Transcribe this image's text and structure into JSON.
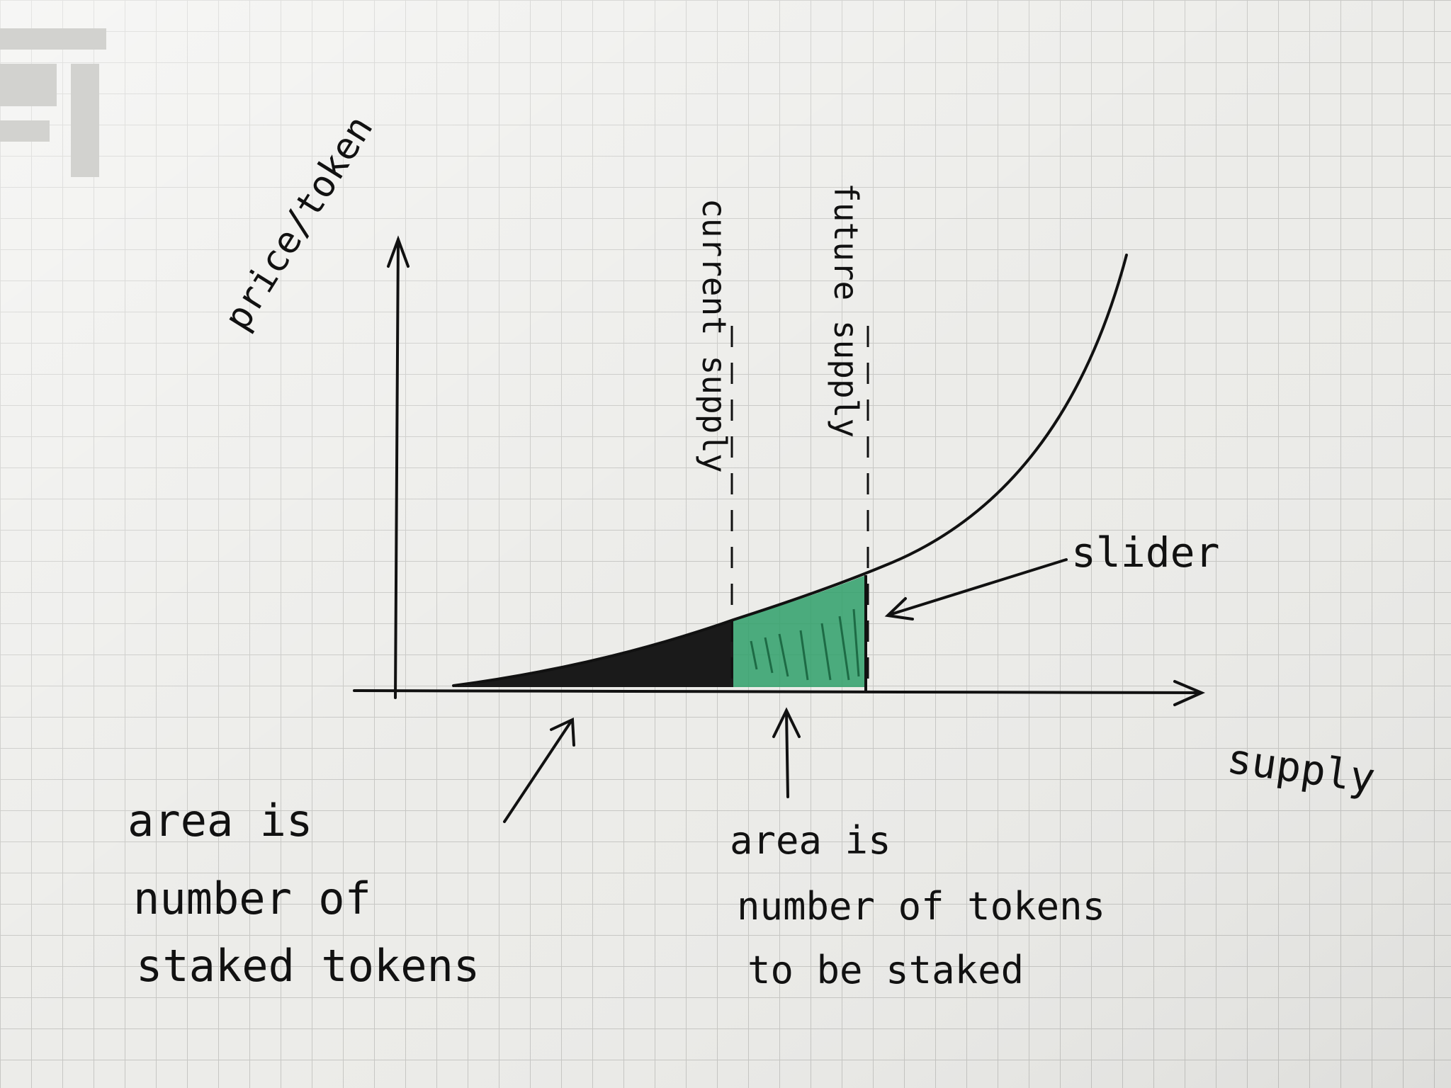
{
  "colors": {
    "paper": "#ecece9",
    "grid": "#c9c9c6",
    "ink": "#111111",
    "stake_fill": "#2fa06a",
    "stake_fill_dark": "#1d7a4e"
  },
  "axes": {
    "y_label": "price/token",
    "x_label": "supply"
  },
  "markers": {
    "current": "current supply",
    "future": "future supply"
  },
  "callouts": {
    "slider": "slider",
    "staked_area": [
      "area is",
      "number of",
      "staked tokens"
    ],
    "to_be_staked_area": [
      "area is",
      "number of tokens",
      "to be staked"
    ]
  }
}
